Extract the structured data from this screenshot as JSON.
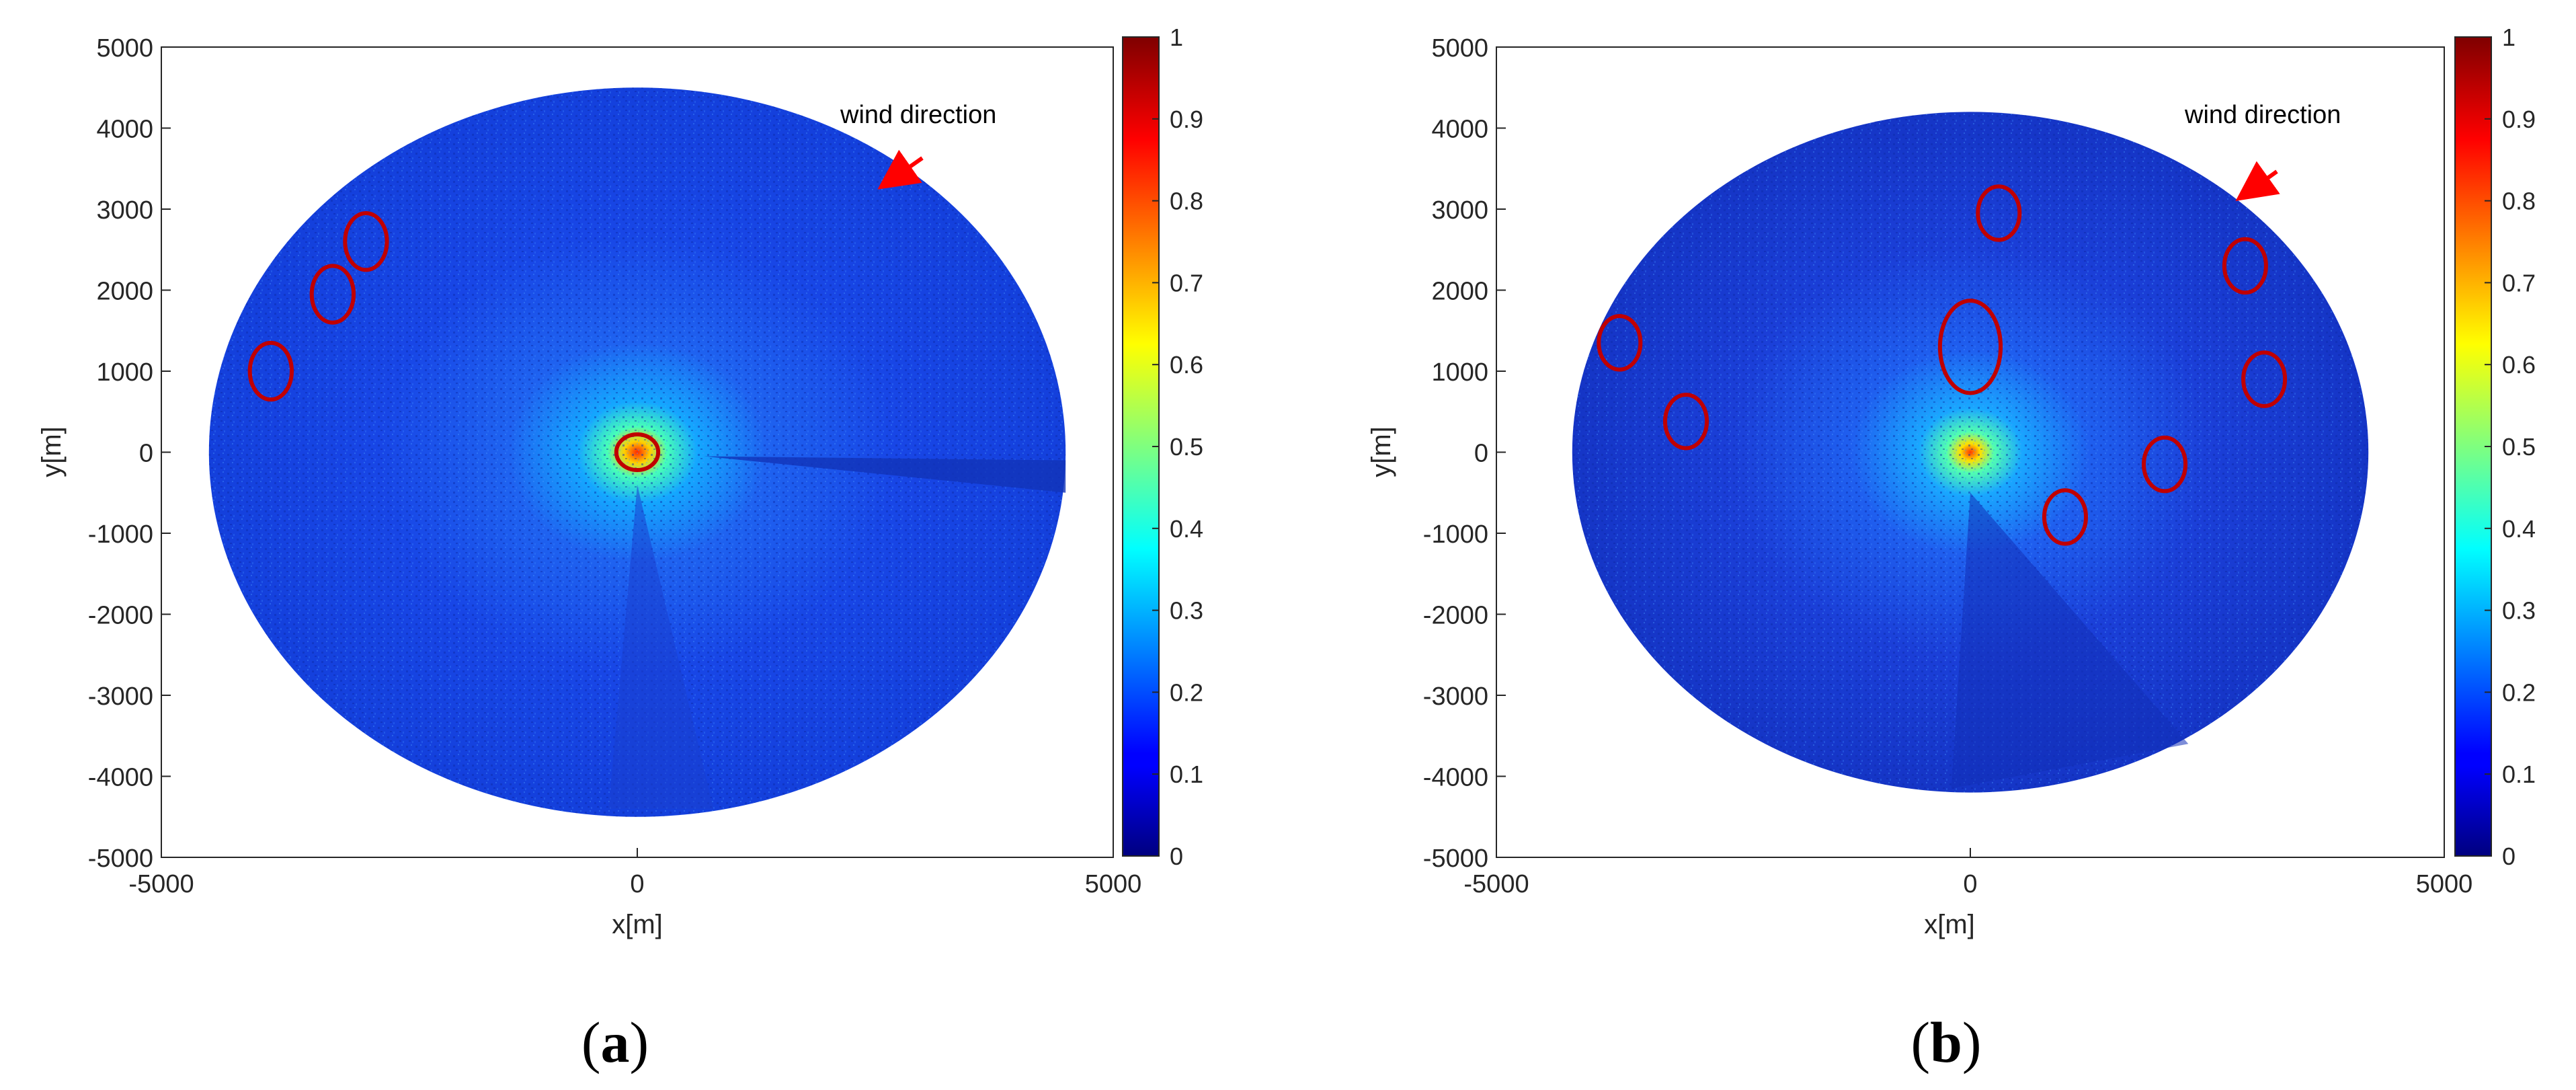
{
  "figure": {
    "panels": [
      {
        "caption_left": "(",
        "caption_letter": "a",
        "caption_right": ")"
      },
      {
        "caption_left": "(",
        "caption_letter": "b",
        "caption_right": ")"
      }
    ]
  },
  "chart_data": [
    {
      "type": "heatmap",
      "title": "",
      "xlabel": "x[m]",
      "ylabel": "y[m]",
      "xlim": [
        -5000,
        5000
      ],
      "ylim": [
        -5000,
        5000
      ],
      "x_ticks": [
        "-5000",
        "0",
        "5000"
      ],
      "y_ticks": [
        "5000",
        "4000",
        "3000",
        "2000",
        "1000",
        "0",
        "-1000",
        "-2000",
        "-3000",
        "-4000",
        "-5000"
      ],
      "radar_radius": 4500,
      "radar_shape": "circle",
      "colormap": "jet",
      "colorbar": {
        "range": [
          0,
          1
        ],
        "ticks": [
          "1",
          "0.9",
          "0.8",
          "0.7",
          "0.6",
          "0.5",
          "0.4",
          "0.3",
          "0.2",
          "0.1",
          "0"
        ]
      },
      "annotation": {
        "text": "wind direction",
        "arrow_color": "#ff0000",
        "arrow_direction": "toward center (from northeast)"
      },
      "highlighted_regions": [
        {
          "cx": -3850,
          "cy": 1000,
          "rx": 220,
          "ry": 350
        },
        {
          "cx": -3200,
          "cy": 1950,
          "rx": 220,
          "ry": 350
        },
        {
          "cx": -2850,
          "cy": 2600,
          "rx": 220,
          "ry": 350
        },
        {
          "cx": 0,
          "cy": 0,
          "rx": 220,
          "ry": 220
        }
      ],
      "highlight_color": "#c00000"
    },
    {
      "type": "heatmap",
      "title": "",
      "xlabel": "x[m]",
      "ylabel": "y[m]",
      "xlim": [
        -5000,
        5000
      ],
      "ylim": [
        -5000,
        5000
      ],
      "x_ticks": [
        "-5000",
        "0",
        "5000"
      ],
      "y_ticks": [
        "5000",
        "4000",
        "3000",
        "2000",
        "1000",
        "0",
        "-1000",
        "-2000",
        "-3000",
        "-4000",
        "-5000"
      ],
      "radar_radius": 4200,
      "radar_shape": "circle",
      "colormap": "jet",
      "colorbar": {
        "range": [
          0,
          1
        ],
        "ticks": [
          "1",
          "0.9",
          "0.8",
          "0.7",
          "0.6",
          "0.5",
          "0.4",
          "0.3",
          "0.2",
          "0.1",
          "0"
        ]
      },
      "annotation": {
        "text": "wind direction",
        "arrow_color": "#ff0000",
        "arrow_direction": "toward center (from northeast)"
      },
      "highlighted_regions": [
        {
          "cx": 300,
          "cy": 2950,
          "rx": 220,
          "ry": 330
        },
        {
          "cx": -3700,
          "cy": 1350,
          "rx": 220,
          "ry": 330
        },
        {
          "cx": -3000,
          "cy": 380,
          "rx": 220,
          "ry": 330
        },
        {
          "cx": 0,
          "cy": 1300,
          "rx": 320,
          "ry": 570
        },
        {
          "cx": 2900,
          "cy": 2300,
          "rx": 220,
          "ry": 330
        },
        {
          "cx": 3100,
          "cy": 900,
          "rx": 220,
          "ry": 330
        },
        {
          "cx": 2050,
          "cy": -150,
          "rx": 220,
          "ry": 330
        },
        {
          "cx": 1000,
          "cy": -800,
          "rx": 220,
          "ry": 330
        }
      ],
      "highlight_color": "#c00000"
    }
  ]
}
